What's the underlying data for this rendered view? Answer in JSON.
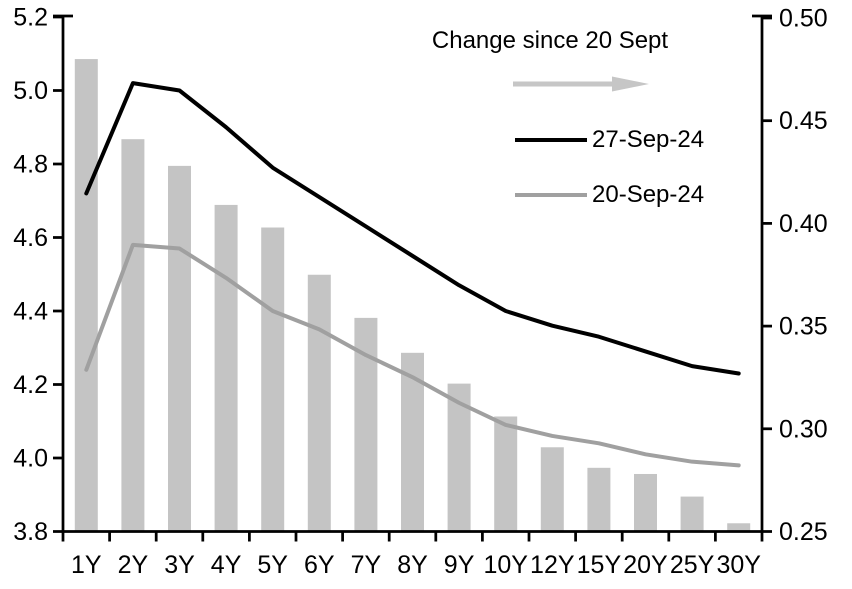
{
  "chart_data": {
    "type": "combo-bar-line",
    "title": "",
    "categories": [
      "1Y",
      "2Y",
      "3Y",
      "4Y",
      "5Y",
      "6Y",
      "7Y",
      "8Y",
      "9Y",
      "10Y",
      "12Y",
      "15Y",
      "20Y",
      "25Y",
      "30Y"
    ],
    "series": [
      {
        "name": "Change since 20 Sept",
        "type": "bar",
        "axis": "right",
        "color": "#c4c4c4",
        "values": [
          0.48,
          0.441,
          0.428,
          0.409,
          0.398,
          0.375,
          0.354,
          0.337,
          0.322,
          0.306,
          0.291,
          0.281,
          0.278,
          0.267,
          0.254
        ]
      },
      {
        "name": "27-Sep-24",
        "type": "line",
        "axis": "left",
        "color": "#000000",
        "values": [
          4.72,
          5.02,
          5.0,
          4.9,
          4.79,
          4.71,
          4.63,
          4.55,
          4.47,
          4.4,
          4.36,
          4.33,
          4.29,
          4.25,
          4.23
        ]
      },
      {
        "name": "20-Sep-24",
        "type": "line",
        "axis": "left",
        "color": "#a0a0a0",
        "values": [
          4.24,
          4.58,
          4.57,
          4.49,
          4.4,
          4.35,
          4.28,
          4.22,
          4.15,
          4.09,
          4.06,
          4.04,
          4.01,
          3.99,
          3.98
        ]
      }
    ],
    "left_axis": {
      "min": 3.8,
      "max": 5.2,
      "tick_labels": [
        "5.2",
        "5.0",
        "4.8",
        "4.6",
        "4.4",
        "4.2",
        "4.0",
        "3.8"
      ]
    },
    "right_axis": {
      "min": 0.25,
      "max": 0.5,
      "tick_labels": [
        "0.50",
        "0.45",
        "0.40",
        "0.35",
        "0.30",
        "0.25"
      ]
    },
    "legend": {
      "title": "Change since 20 Sept",
      "arrow_color": "#c6c6c6",
      "entries": [
        {
          "label": "27-Sep-24",
          "color": "#000000"
        },
        {
          "label": "20-Sep-24",
          "color": "#a0a0a0"
        }
      ],
      "position": "top-right-inside"
    },
    "grid": false,
    "axis_color": "#000000",
    "text_color": "#000000"
  }
}
